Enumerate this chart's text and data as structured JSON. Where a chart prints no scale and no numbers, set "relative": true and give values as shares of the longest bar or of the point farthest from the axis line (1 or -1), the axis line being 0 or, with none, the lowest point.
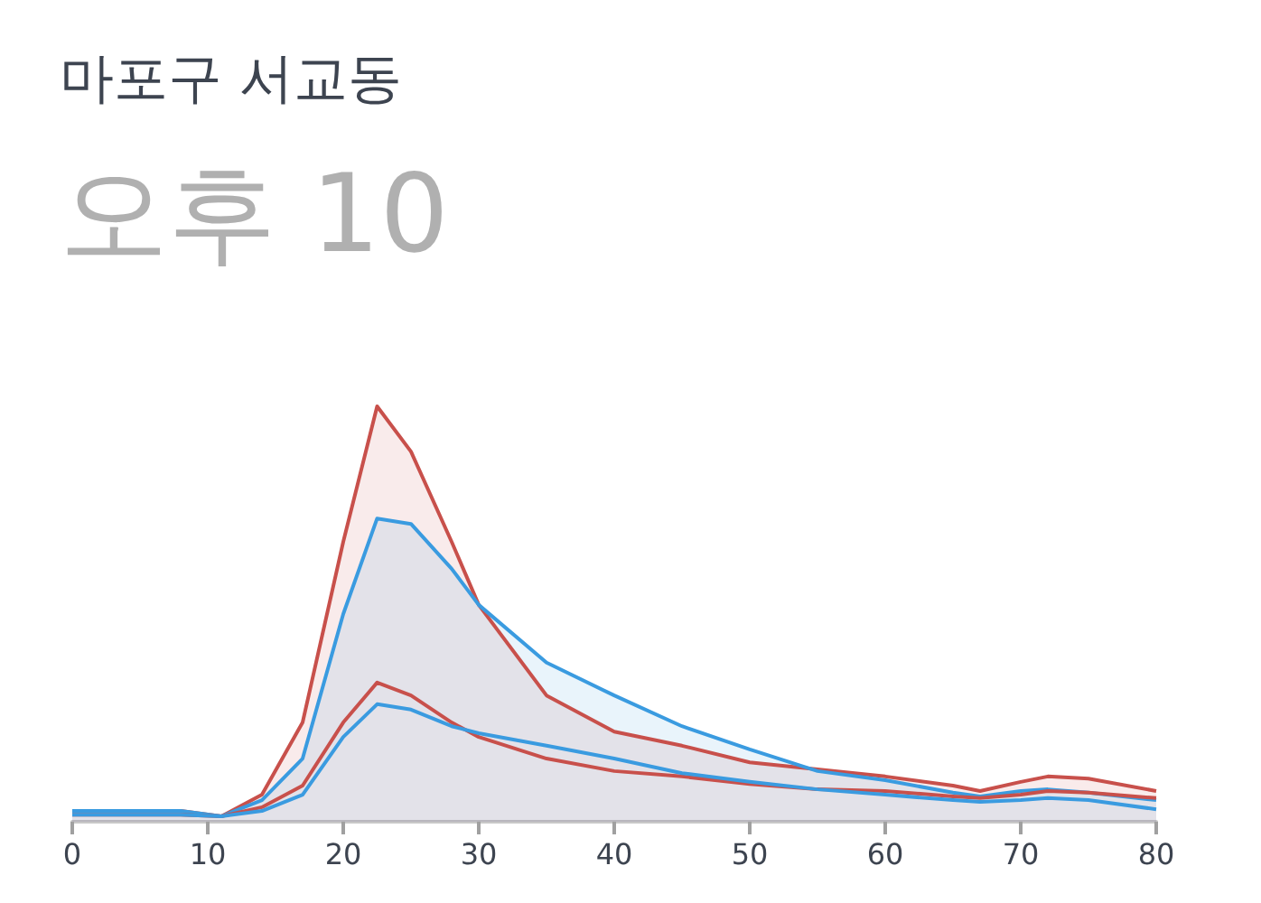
{
  "chart_data": {
    "type": "line",
    "title": "마포구 서교동",
    "subtitle": "오후 10",
    "relative": true,
    "grid": false,
    "x": [
      0,
      8,
      11,
      14,
      17,
      20,
      22.5,
      25,
      28,
      30,
      35,
      40,
      45,
      50,
      55,
      60,
      65,
      67,
      70,
      72,
      75,
      80
    ],
    "xlim": [
      0,
      80
    ],
    "xticks": [
      0,
      10,
      20,
      30,
      40,
      50,
      60,
      70,
      80
    ],
    "series": [
      {
        "type": "area",
        "color": "#c8504b",
        "values": [
          0.026,
          0.026,
          0.013,
          0.065,
          0.239,
          0.674,
          1,
          0.891,
          0.674,
          0.522,
          0.304,
          0.217,
          0.183,
          0.143,
          0.126,
          0.109,
          0.087,
          0.074,
          0.096,
          0.109,
          0.104,
          0.074
        ]
      },
      {
        "color": "#c8504b",
        "values": [
          0.017,
          0.017,
          0.013,
          0.035,
          0.087,
          0.239,
          0.335,
          0.304,
          0.239,
          0.204,
          0.152,
          0.122,
          0.109,
          0.091,
          0.078,
          0.074,
          0.061,
          0.057,
          0.065,
          0.074,
          0.07,
          0.057
        ]
      },
      {
        "type": "area",
        "color": "#3a9be0",
        "values": [
          0.026,
          0.026,
          0.013,
          0.052,
          0.152,
          0.5,
          0.73,
          0.717,
          0.609,
          0.522,
          0.383,
          0.304,
          0.23,
          0.174,
          0.122,
          0.1,
          0.07,
          0.061,
          0.074,
          0.078,
          0.07,
          0.052
        ]
      },
      {
        "color": "#3a9be0",
        "values": [
          0.017,
          0.017,
          0.013,
          0.026,
          0.065,
          0.204,
          0.283,
          0.27,
          0.23,
          0.213,
          0.183,
          0.152,
          0.117,
          0.096,
          0.078,
          0.065,
          0.052,
          0.048,
          0.052,
          0.057,
          0.052,
          0.03
        ]
      }
    ]
  }
}
